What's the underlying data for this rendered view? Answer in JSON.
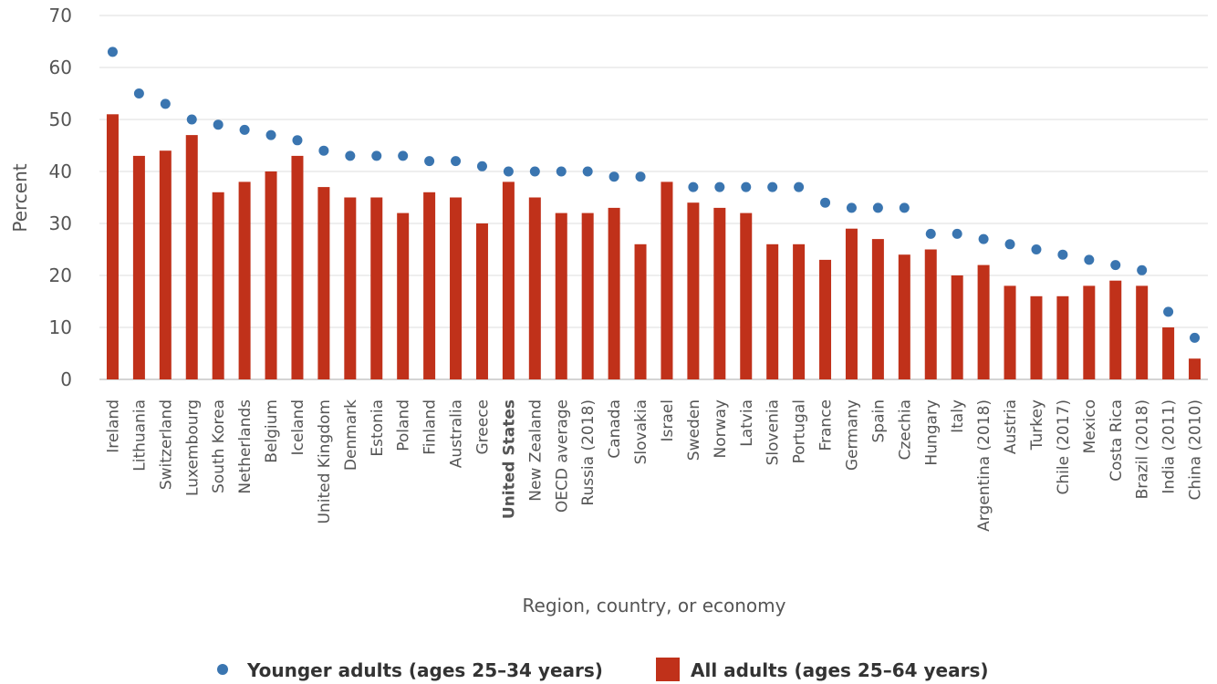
{
  "chart_data": {
    "type": "bar",
    "categories": [
      "Ireland",
      "Lithuania",
      "Switzerland",
      "Luxembourg",
      "South Korea",
      "Netherlands",
      "Belgium",
      "Iceland",
      "United Kingdom",
      "Denmark",
      "Estonia",
      "Poland",
      "Finland",
      "Australia",
      "Greece",
      "United States",
      "New Zealand",
      "OECD average",
      "Russia (2018)",
      "Canada",
      "Slovakia",
      "Israel",
      "Sweden",
      "Norway",
      "Latvia",
      "Slovenia",
      "Portugal",
      "France",
      "Germany",
      "Spain",
      "Czechia",
      "Hungary",
      "Italy",
      "Argentina (2018)",
      "Austria",
      "Turkey",
      "Chile (2017)",
      "Mexico",
      "Costa Rica",
      "Brazil (2018)",
      "India (2011)",
      "China (2010)"
    ],
    "highlight_category": "United States",
    "series": [
      {
        "name": "Younger adults (ages 25–34 years)",
        "type": "scatter",
        "color": "#3a75b0",
        "values": [
          63,
          55,
          53,
          50,
          49,
          48,
          47,
          46,
          44,
          43,
          43,
          43,
          42,
          42,
          41,
          40,
          40,
          40,
          40,
          39,
          39,
          null,
          37,
          37,
          37,
          37,
          37,
          34,
          33,
          33,
          33,
          28,
          28,
          27,
          26,
          25,
          24,
          23,
          22,
          21,
          13,
          8
        ]
      },
      {
        "name": "All adults (ages 25–64 years)",
        "type": "bar",
        "color": "#c0311a",
        "values": [
          51,
          43,
          44,
          47,
          36,
          38,
          40,
          43,
          37,
          35,
          35,
          32,
          36,
          35,
          30,
          38,
          35,
          32,
          32,
          33,
          26,
          38,
          34,
          33,
          32,
          26,
          26,
          23,
          29,
          27,
          24,
          25,
          20,
          22,
          18,
          16,
          16,
          18,
          19,
          18,
          10,
          4
        ]
      }
    ],
    "xlabel": "Region, country, or economy",
    "ylabel": "Percent",
    "ylim": [
      0,
      70
    ],
    "yticks": [
      0,
      10,
      20,
      30,
      40,
      50,
      60,
      70
    ],
    "grid": true,
    "legend_position": "bottom-center"
  }
}
